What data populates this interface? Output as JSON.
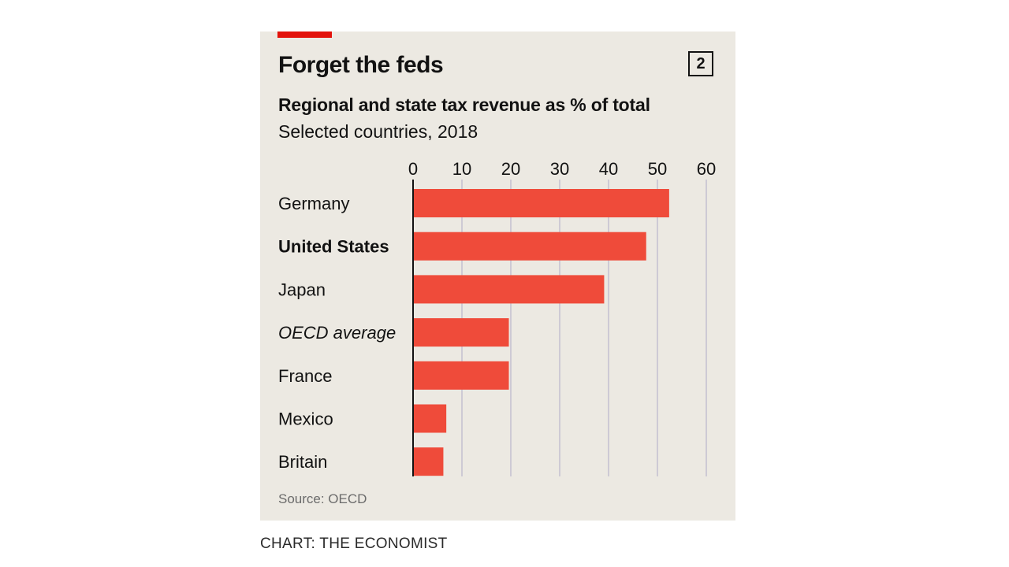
{
  "card": {
    "title": "Forget the feds",
    "chart_number": "2",
    "subtitle": "Regional and state tax revenue as % of total",
    "description": "Selected countries, 2018",
    "source": "Source: OECD"
  },
  "credit": "CHART: THE ECONOMIST",
  "colors": {
    "bar": "#ef4b3a",
    "accent": "#e3120b",
    "background": "#ece9e2",
    "gridline": "#b9b6cc"
  },
  "chart_data": {
    "type": "bar",
    "orientation": "horizontal",
    "title": "Forget the feds",
    "subtitle": "Regional and state tax revenue as % of total",
    "xlim": [
      0,
      60
    ],
    "xticks": [
      "0",
      "10",
      "20",
      "30",
      "40",
      "50",
      "60"
    ],
    "grid": true,
    "categories": [
      {
        "label": "Germany",
        "style": "normal"
      },
      {
        "label": "United States",
        "style": "bold"
      },
      {
        "label": "Japan",
        "style": "normal"
      },
      {
        "label": "OECD average",
        "style": "italic"
      },
      {
        "label": "France",
        "style": "normal"
      },
      {
        "label": "Mexico",
        "style": "normal"
      },
      {
        "label": "Britain",
        "style": "normal"
      }
    ],
    "values": [
      52.4,
      47.7,
      39.1,
      19.6,
      19.6,
      6.8,
      6.2
    ]
  }
}
